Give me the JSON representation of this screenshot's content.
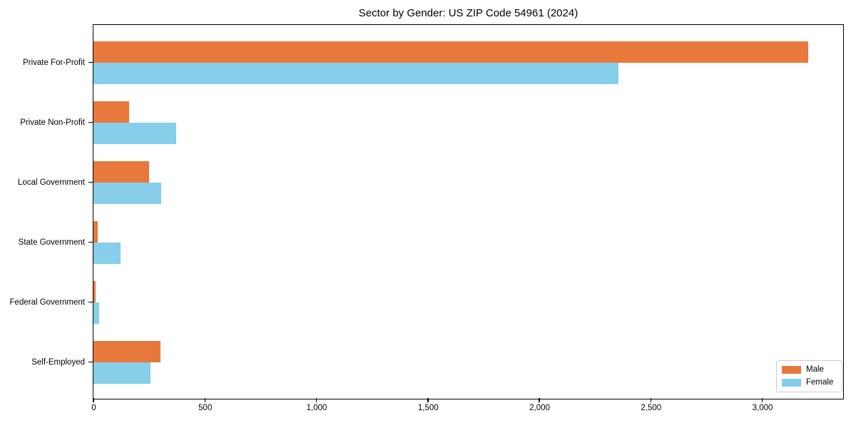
{
  "chart_data": {
    "type": "bar",
    "orientation": "horizontal",
    "title": "Sector by Gender: US ZIP Code 54961 (2024)",
    "categories": [
      "Private For-Profit",
      "Private Non-Profit",
      "Local Government",
      "State Government",
      "Federal Government",
      "Self-Employed"
    ],
    "series": [
      {
        "name": "Male",
        "color": "#e8793d",
        "values": [
          3205,
          160,
          250,
          20,
          10,
          300
        ]
      },
      {
        "name": "Female",
        "color": "#87ceeb",
        "values": [
          2355,
          370,
          305,
          120,
          25,
          255
        ]
      }
    ],
    "xlabel": "",
    "ylabel": "",
    "xlim": [
      0,
      3360
    ],
    "xticks": [
      0,
      500,
      1000,
      1500,
      2000,
      2500,
      3000
    ],
    "xtick_labels": [
      "0",
      "500",
      "1,000",
      "1,500",
      "2,000",
      "2,500",
      "3,000"
    ],
    "grid": false,
    "legend_position": "lower-right",
    "frame": {
      "border_color": "#000000",
      "background": "#ffffff"
    }
  }
}
